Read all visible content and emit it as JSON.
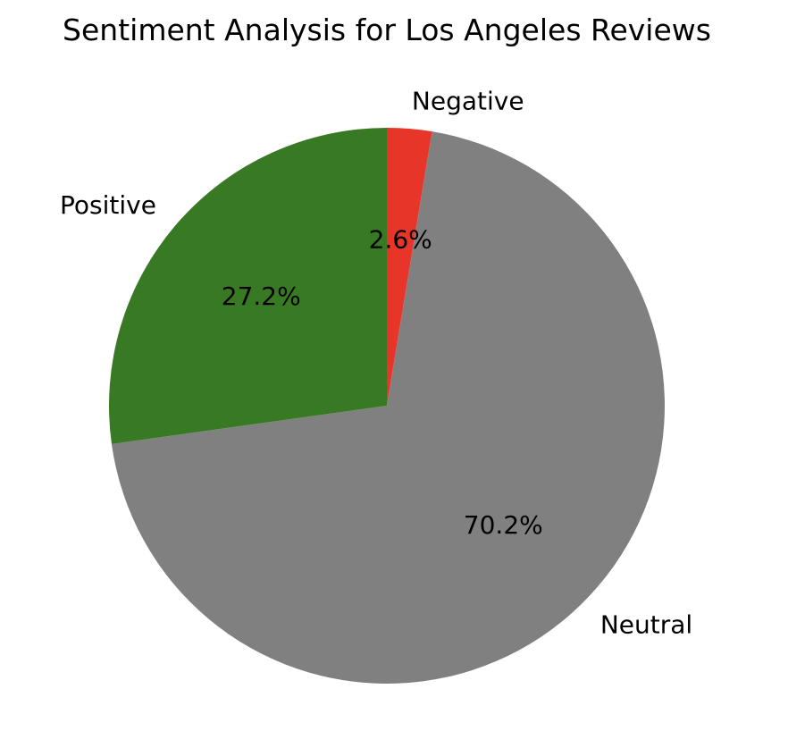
{
  "chart_data": {
    "type": "pie",
    "title": "Sentiment Analysis for Los Angeles Reviews",
    "categories": [
      "Negative",
      "Neutral",
      "Positive"
    ],
    "values": [
      2.6,
      70.2,
      27.2
    ],
    "value_labels": [
      "2.6%",
      "70.2%",
      "27.2%"
    ],
    "colors": [
      "#e8352a",
      "#808080",
      "#387a23"
    ],
    "start_angle_deg": 90,
    "direction": "clockwise",
    "legend": "none"
  }
}
